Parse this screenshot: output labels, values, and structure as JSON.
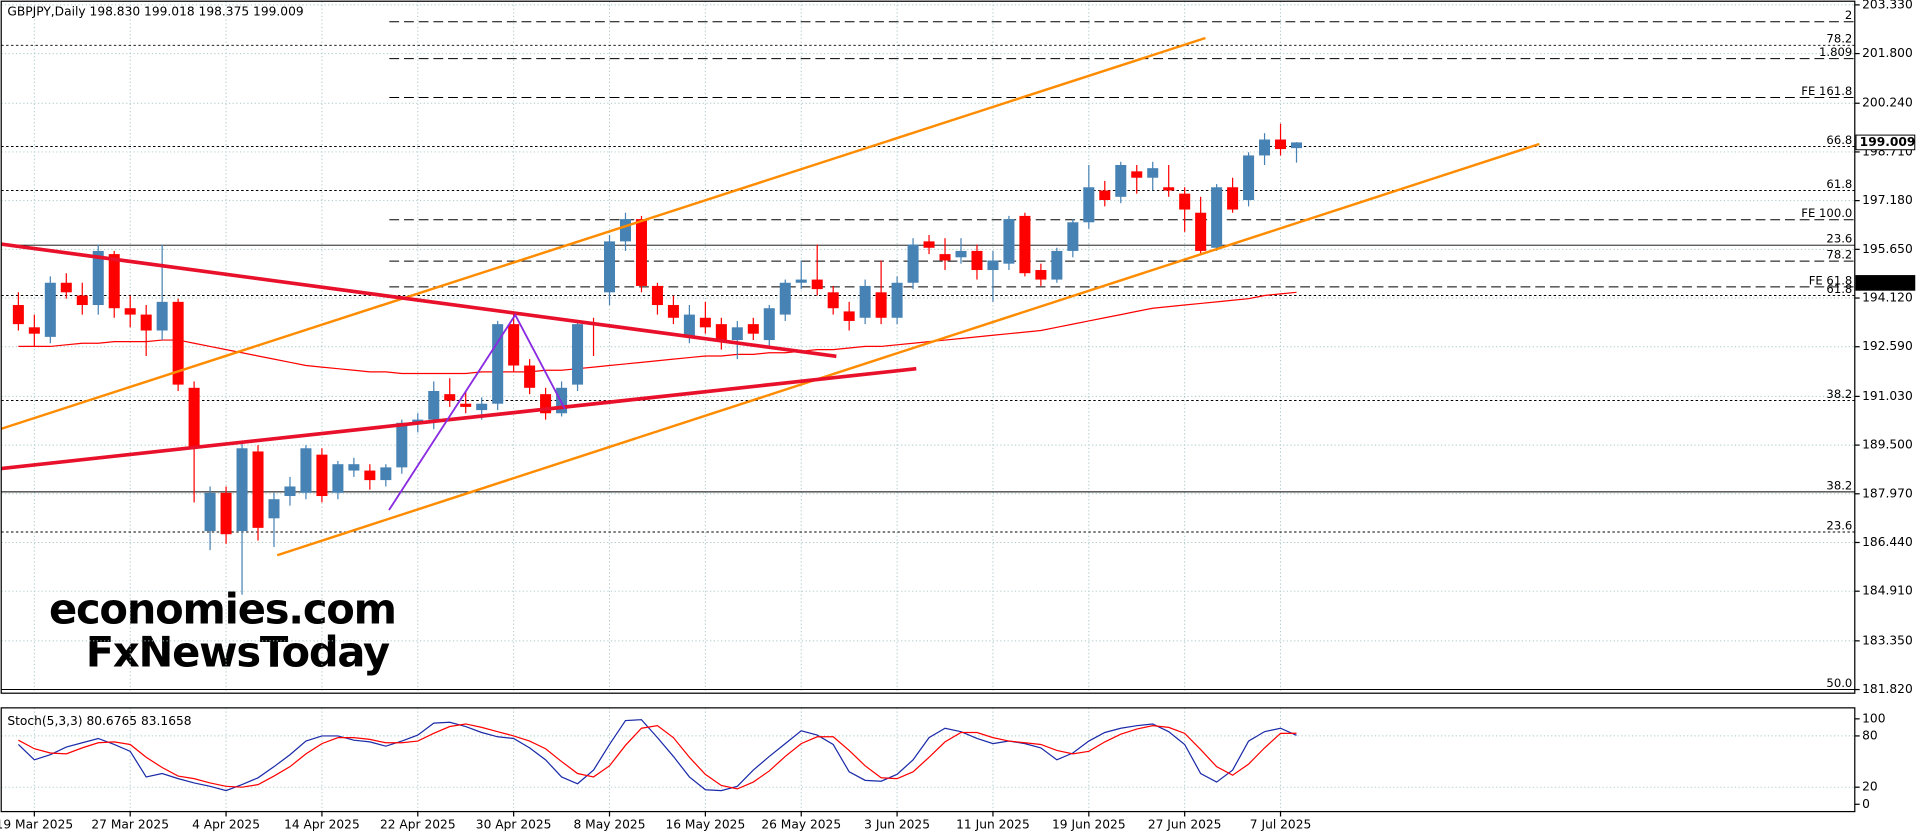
{
  "chart_data": [
    {
      "type": "candlestick",
      "title": "GBPJPY,Daily  198.830 199.018 198.375 199.009",
      "bull_color": "#4682b4",
      "bear_color": "#ff0000",
      "grid": true,
      "categories": [
        null,
        "19 Mar 2025",
        null,
        null,
        null,
        null,
        null,
        "27 Mar 2025",
        null,
        null,
        null,
        null,
        null,
        "4 Apr 2025",
        null,
        null,
        null,
        null,
        null,
        "14 Apr 2025",
        null,
        null,
        null,
        null,
        null,
        "22 Apr 2025",
        null,
        null,
        null,
        null,
        null,
        "30 Apr 2025",
        null,
        null,
        null,
        null,
        null,
        "8 May 2025",
        null,
        null,
        null,
        null,
        null,
        "16 May 2025",
        null,
        null,
        null,
        null,
        null,
        "26 May 2025",
        null,
        null,
        null,
        null,
        null,
        "3 Jun 2025",
        null,
        null,
        null,
        null,
        null,
        "11 Jun 2025",
        null,
        null,
        null,
        null,
        null,
        "19 Jun 2025",
        null,
        null,
        null,
        null,
        null,
        "27 Jun 2025",
        null,
        null,
        null,
        null,
        null,
        "7 Jul 2025",
        null
      ],
      "ohlc": [
        [
          193.9,
          194.3,
          193.1,
          193.3
        ],
        [
          193.2,
          193.6,
          192.6,
          193.0
        ],
        [
          192.9,
          194.8,
          192.7,
          194.6
        ],
        [
          194.6,
          194.9,
          194.1,
          194.3
        ],
        [
          194.2,
          194.6,
          193.6,
          193.9
        ],
        [
          193.9,
          195.8,
          193.6,
          195.6
        ],
        [
          195.5,
          195.6,
          193.5,
          193.8
        ],
        [
          193.8,
          194.2,
          193.2,
          193.6
        ],
        [
          193.6,
          193.9,
          192.3,
          193.1
        ],
        [
          193.1,
          195.8,
          192.8,
          194.0
        ],
        [
          194.0,
          194.1,
          191.2,
          191.4
        ],
        [
          191.3,
          191.5,
          187.7,
          189.4
        ],
        [
          186.8,
          188.2,
          186.2,
          188.0
        ],
        [
          188.0,
          188.2,
          186.4,
          186.7
        ],
        [
          186.8,
          189.6,
          184.8,
          189.4
        ],
        [
          189.3,
          189.5,
          186.5,
          186.9
        ],
        [
          187.2,
          188.0,
          186.3,
          187.8
        ],
        [
          187.9,
          188.5,
          187.6,
          188.2
        ],
        [
          188.0,
          189.5,
          187.8,
          189.4
        ],
        [
          189.2,
          189.4,
          187.7,
          187.9
        ],
        [
          188.0,
          189.0,
          187.8,
          188.9
        ],
        [
          188.7,
          189.1,
          188.5,
          188.9
        ],
        [
          188.7,
          188.9,
          188.1,
          188.4
        ],
        [
          188.4,
          188.9,
          188.2,
          188.8
        ],
        [
          188.8,
          190.3,
          188.6,
          190.2
        ],
        [
          190.2,
          190.5,
          189.9,
          190.3
        ],
        [
          190.3,
          191.5,
          190.0,
          191.2
        ],
        [
          191.1,
          191.6,
          190.7,
          190.9
        ],
        [
          190.8,
          191.2,
          190.5,
          190.7
        ],
        [
          190.6,
          191.0,
          190.3,
          190.8
        ],
        [
          190.8,
          193.4,
          190.6,
          193.3
        ],
        [
          193.3,
          193.6,
          191.8,
          192.0
        ],
        [
          192.0,
          192.2,
          191.1,
          191.3
        ],
        [
          191.1,
          191.3,
          190.3,
          190.5
        ],
        [
          190.5,
          191.5,
          190.4,
          191.3
        ],
        [
          191.4,
          193.4,
          191.2,
          193.3
        ],
        [
          193.35,
          193.5,
          192.3,
          193.3
        ],
        [
          194.3,
          196.1,
          193.9,
          195.9
        ],
        [
          195.9,
          196.8,
          195.6,
          196.6
        ],
        [
          196.6,
          196.7,
          194.3,
          194.5
        ],
        [
          194.5,
          194.6,
          193.6,
          193.9
        ],
        [
          193.9,
          194.2,
          193.3,
          193.5
        ],
        [
          192.9,
          193.9,
          192.7,
          193.6
        ],
        [
          193.5,
          194.0,
          193.0,
          193.2
        ],
        [
          193.3,
          193.5,
          192.5,
          192.8
        ],
        [
          192.8,
          193.4,
          192.2,
          193.2
        ],
        [
          193.3,
          193.5,
          192.8,
          193.0
        ],
        [
          192.8,
          193.9,
          192.6,
          193.8
        ],
        [
          193.6,
          194.7,
          193.4,
          194.6
        ],
        [
          194.6,
          195.3,
          194.4,
          194.7
        ],
        [
          194.7,
          195.8,
          194.2,
          194.4
        ],
        [
          194.3,
          194.5,
          193.6,
          193.8
        ],
        [
          193.7,
          194.0,
          193.1,
          193.4
        ],
        [
          193.5,
          194.7,
          193.3,
          194.5
        ],
        [
          194.3,
          195.3,
          193.3,
          193.5
        ],
        [
          193.5,
          194.8,
          193.3,
          194.6
        ],
        [
          194.6,
          196.0,
          194.4,
          195.8
        ],
        [
          195.9,
          196.1,
          195.5,
          195.7
        ],
        [
          195.5,
          196.0,
          195.0,
          195.3
        ],
        [
          195.4,
          196.0,
          195.2,
          195.6
        ],
        [
          195.6,
          195.8,
          194.7,
          195.0
        ],
        [
          195.0,
          195.6,
          194.0,
          195.3
        ],
        [
          195.2,
          196.7,
          195.0,
          196.6
        ],
        [
          196.7,
          196.8,
          194.8,
          194.9
        ],
        [
          195.0,
          195.2,
          194.5,
          194.7
        ],
        [
          194.7,
          195.7,
          194.6,
          195.6
        ],
        [
          195.6,
          196.6,
          195.4,
          196.5
        ],
        [
          196.5,
          198.3,
          196.3,
          197.6
        ],
        [
          197.5,
          197.8,
          197.0,
          197.2
        ],
        [
          197.3,
          198.4,
          197.1,
          198.3
        ],
        [
          198.1,
          198.3,
          197.4,
          197.9
        ],
        [
          197.9,
          198.4,
          197.5,
          198.2
        ],
        [
          197.6,
          198.3,
          197.3,
          197.5
        ],
        [
          197.4,
          197.6,
          196.2,
          196.9
        ],
        [
          196.8,
          197.3,
          195.5,
          195.6
        ],
        [
          195.7,
          197.7,
          195.6,
          197.6
        ],
        [
          197.6,
          197.9,
          196.8,
          196.9
        ],
        [
          197.2,
          198.7,
          197.0,
          198.6
        ],
        [
          198.6,
          199.3,
          198.3,
          199.1
        ],
        [
          199.1,
          199.6,
          198.6,
          198.8
        ],
        [
          198.83,
          199.018,
          198.375,
          199.009
        ]
      ],
      "ma": {
        "color": "#ff0000",
        "values": [
          192.6,
          192.6,
          192.6,
          192.65,
          192.7,
          192.7,
          192.75,
          192.75,
          192.75,
          192.8,
          192.8,
          192.7,
          192.6,
          192.5,
          192.4,
          192.3,
          192.2,
          192.1,
          192.0,
          191.95,
          191.9,
          191.85,
          191.8,
          191.8,
          191.75,
          191.75,
          191.75,
          191.75,
          191.75,
          191.8,
          191.8,
          191.8,
          191.8,
          191.85,
          191.85,
          191.9,
          191.95,
          192.0,
          192.05,
          192.1,
          192.15,
          192.2,
          192.25,
          192.3,
          192.3,
          192.35,
          192.35,
          192.4,
          192.4,
          192.45,
          192.5,
          192.5,
          192.55,
          192.6,
          192.6,
          192.65,
          192.7,
          192.75,
          192.8,
          192.85,
          192.9,
          192.95,
          193.0,
          193.05,
          193.1,
          193.2,
          193.3,
          193.4,
          193.5,
          193.6,
          193.7,
          193.8,
          193.85,
          193.9,
          193.95,
          194.0,
          194.05,
          194.1,
          194.2,
          194.25,
          194.3
        ]
      },
      "ylim": [
        181.82,
        203.33
      ],
      "yticks": [
        {
          "value": 181.82,
          "label": "181.820"
        },
        {
          "value": 183.35,
          "label": "183.350"
        },
        {
          "value": 184.91,
          "label": "184.910"
        },
        {
          "value": 186.44,
          "label": "186.440"
        },
        {
          "value": 187.97,
          "label": "187.970"
        },
        {
          "value": 189.5,
          "label": "189.500"
        },
        {
          "value": 191.03,
          "label": "191.030"
        },
        {
          "value": 192.59,
          "label": "192.590"
        },
        {
          "value": 194.12,
          "label": "194.120"
        },
        {
          "value": 195.65,
          "label": "195.650"
        },
        {
          "value": 197.18,
          "label": "197.180"
        },
        {
          "value": 198.71,
          "label": "198.710"
        },
        {
          "value": 200.24,
          "label": "200.240"
        },
        {
          "value": 201.8,
          "label": "201.800"
        },
        {
          "value": 203.33,
          "label": "203.330"
        }
      ],
      "levels": [
        {
          "value": 202.8,
          "label": "2",
          "style": "dash"
        },
        {
          "value": 202.06,
          "label": "78.2",
          "style": "dot"
        },
        {
          "value": 201.64,
          "label": "1.809",
          "style": "dash"
        },
        {
          "value": 200.42,
          "label": "FE 161.8",
          "style": "dash"
        },
        {
          "value": 198.88,
          "label": "66.8",
          "style": "dot"
        },
        {
          "value": 197.5,
          "label": "61.8",
          "style": "dot"
        },
        {
          "value": 196.58,
          "label": "FE 100.0",
          "style": "dash"
        },
        {
          "value": 195.78,
          "label": "23.6",
          "style": "solid"
        },
        {
          "value": 195.28,
          "label": "78.2",
          "style": "dash"
        },
        {
          "value": 194.47,
          "label": "FE 61.8",
          "style": "dash"
        },
        {
          "value": 194.2,
          "label": "61.8",
          "style": "dot"
        },
        {
          "value": 190.9,
          "label": "38.2",
          "style": "dot"
        },
        {
          "value": 188.03,
          "label": "38.2",
          "style": "solid"
        },
        {
          "value": 186.77,
          "label": "23.6",
          "style": "dot"
        },
        {
          "value": 181.82,
          "label": "50.0",
          "style": "solid"
        }
      ],
      "trendlines": [
        {
          "color": "#ff8c00",
          "width": 2,
          "points": [
            [
              -1.15,
              190.0
            ],
            [
              74.3,
              202.29
            ]
          ]
        },
        {
          "color": "#ff8c00",
          "width": 2,
          "points": [
            [
              16.2,
              186.04
            ],
            [
              95.2,
              198.96
            ]
          ]
        },
        {
          "color": "#e8102a",
          "width": 3,
          "points": [
            [
              -1.15,
              195.82
            ],
            [
              51.2,
              192.29
            ]
          ]
        },
        {
          "color": "#e8102a",
          "width": 3,
          "points": [
            [
              -1.15,
              188.76
            ],
            [
              56.2,
              191.9
            ]
          ]
        },
        {
          "color": "#8a2be2",
          "width": 1.5,
          "points": [
            [
              23.2,
              187.46
            ],
            [
              31.1,
              193.59
            ],
            [
              34.2,
              190.64
            ]
          ]
        }
      ],
      "markers": [
        {
          "value": 199.009,
          "background": "#ffffff",
          "color": "#000000"
        },
        {
          "value": 194.596,
          "background": "#000000",
          "color": "#ffffff"
        }
      ],
      "watermark": [
        {
          "text": "economies.com",
          "color": "#f6c9a6"
        },
        {
          "text": "FxNewsToday",
          "color": "#d6d6d6"
        }
      ]
    },
    {
      "type": "line",
      "title": "Stoch(5,3,3) 80.6765 83.1658",
      "ylim": [
        0,
        100
      ],
      "yticks": [
        0,
        20,
        80,
        100
      ],
      "grid": true,
      "series": [
        {
          "color": "#1a2aa8",
          "values": [
            70,
            52,
            58,
            67,
            72,
            77,
            70,
            62,
            32,
            36,
            30,
            25,
            21,
            16,
            23,
            31,
            44,
            58,
            74,
            80,
            80,
            75,
            73,
            68,
            74,
            81,
            95,
            96,
            91,
            84,
            79,
            77,
            66,
            52,
            32,
            24,
            40,
            70,
            98,
            99,
            78,
            56,
            32,
            17,
            16,
            21,
            40,
            56,
            71,
            86,
            81,
            70,
            38,
            28,
            27,
            35,
            52,
            78,
            89,
            85,
            77,
            71,
            74,
            71,
            66,
            52,
            60,
            74,
            84,
            89,
            92,
            94,
            85,
            70,
            36,
            26,
            40,
            74,
            85,
            89,
            80.6765
          ]
        },
        {
          "color": "#ff0000",
          "values": [
            75,
            65,
            60,
            59,
            66,
            72,
            73,
            70,
            55,
            43,
            33,
            30,
            25,
            21,
            20,
            23,
            33,
            44,
            59,
            71,
            78,
            78,
            76,
            72,
            72,
            74,
            83,
            91,
            94,
            90,
            85,
            80,
            74,
            65,
            50,
            36,
            32,
            45,
            69,
            89,
            92,
            78,
            55,
            35,
            22,
            18,
            26,
            39,
            56,
            71,
            79,
            79,
            63,
            45,
            31,
            30,
            38,
            55,
            73,
            84,
            84,
            78,
            74,
            72,
            70,
            63,
            59,
            62,
            73,
            82,
            88,
            92,
            90,
            83,
            64,
            44,
            34,
            47,
            66,
            83,
            83.1658
          ]
        }
      ]
    }
  ]
}
